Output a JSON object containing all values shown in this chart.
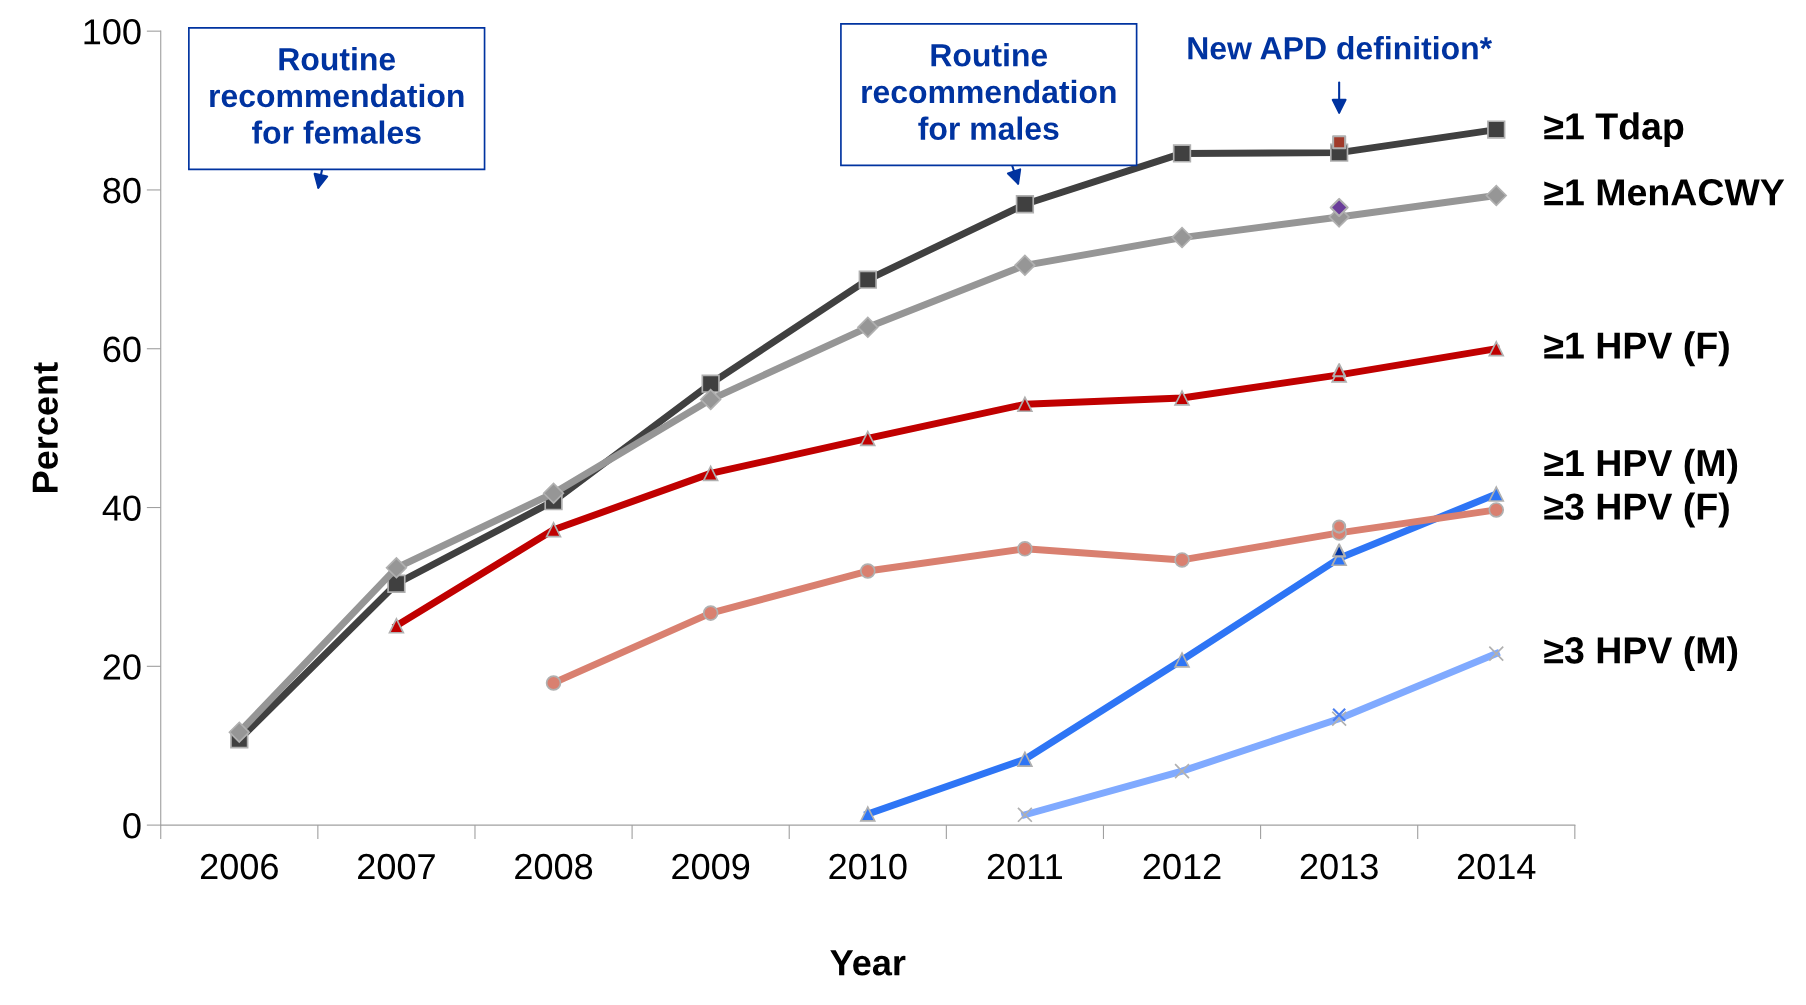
{
  "chart_data": {
    "type": "line",
    "xlabel": "Year",
    "ylabel": "Percent",
    "categories": [
      "2006",
      "2007",
      "2008",
      "2009",
      "2010",
      "2011",
      "2012",
      "2013",
      "2014"
    ],
    "ylim": [
      0,
      100
    ],
    "yticks": [
      0,
      20,
      40,
      60,
      80,
      100
    ],
    "grid": false,
    "legend": false,
    "series": [
      {
        "name": "≥1 Tdap",
        "color": "#404040",
        "marker": "square",
        "values": [
          10.8,
          30.4,
          40.8,
          55.6,
          68.7,
          78.2,
          84.6,
          84.7,
          87.6
        ]
      },
      {
        "name": "≥1 MenACWY",
        "color": "#969696",
        "marker": "diamond",
        "values": [
          11.7,
          32.4,
          41.8,
          53.6,
          62.7,
          70.5,
          74.0,
          76.6,
          79.3
        ]
      },
      {
        "name": "≥1 HPV (F)",
        "color": "#c00000",
        "marker": "triangle",
        "values": [
          null,
          25.1,
          37.2,
          44.3,
          48.7,
          53.0,
          53.8,
          56.7,
          60.0
        ]
      },
      {
        "name": "≥1 HPV (M)",
        "color": "#2e75f5",
        "marker": "triangle",
        "values": [
          null,
          null,
          null,
          null,
          1.4,
          8.3,
          20.8,
          33.6,
          41.7
        ]
      },
      {
        "name": "≥3 HPV (F)",
        "color": "#d98070",
        "marker": "circle",
        "values": [
          null,
          null,
          17.9,
          26.7,
          32.0,
          34.8,
          33.4,
          36.8,
          39.7
        ]
      },
      {
        "name": "≥3 HPV (M)",
        "color": "#80aaff",
        "marker": "cross",
        "values": [
          null,
          null,
          null,
          null,
          null,
          1.3,
          6.8,
          13.4,
          21.6
        ]
      },
      {
        "type": "scatter",
        "color": "#a03a2a",
        "marker": "square",
        "values": [
          null,
          null,
          null,
          null,
          null,
          null,
          null,
          86.0,
          null
        ]
      },
      {
        "type": "scatter",
        "color": "#6a3d9a",
        "marker": "diamond",
        "values": [
          null,
          null,
          null,
          null,
          null,
          null,
          null,
          77.8,
          null
        ]
      },
      {
        "type": "scatter",
        "color": "#c00000",
        "marker": "triangle",
        "values": [
          null,
          null,
          null,
          null,
          null,
          null,
          null,
          57.3,
          null
        ]
      },
      {
        "type": "scatter",
        "color": "#0033a0",
        "marker": "triangle",
        "values": [
          null,
          null,
          null,
          null,
          null,
          null,
          null,
          34.6,
          null
        ]
      },
      {
        "type": "scatter",
        "color": "#d98070",
        "marker": "circle",
        "values": [
          null,
          null,
          null,
          null,
          null,
          null,
          null,
          37.6,
          null
        ]
      },
      {
        "type": "scatter",
        "color": "#4a7ff0",
        "marker": "cross",
        "values": [
          null,
          null,
          null,
          null,
          null,
          null,
          null,
          13.9,
          null
        ]
      }
    ],
    "annotations": [
      "Routine\nrecommendation\nfor females",
      {
        "text": "Routine\nrecommendation\nfor males",
        "x": "2011",
        "y": 78.2
      },
      {
        "text": "New APD definition*",
        "x": "2013",
        "y": 87
      }
    ]
  }
}
